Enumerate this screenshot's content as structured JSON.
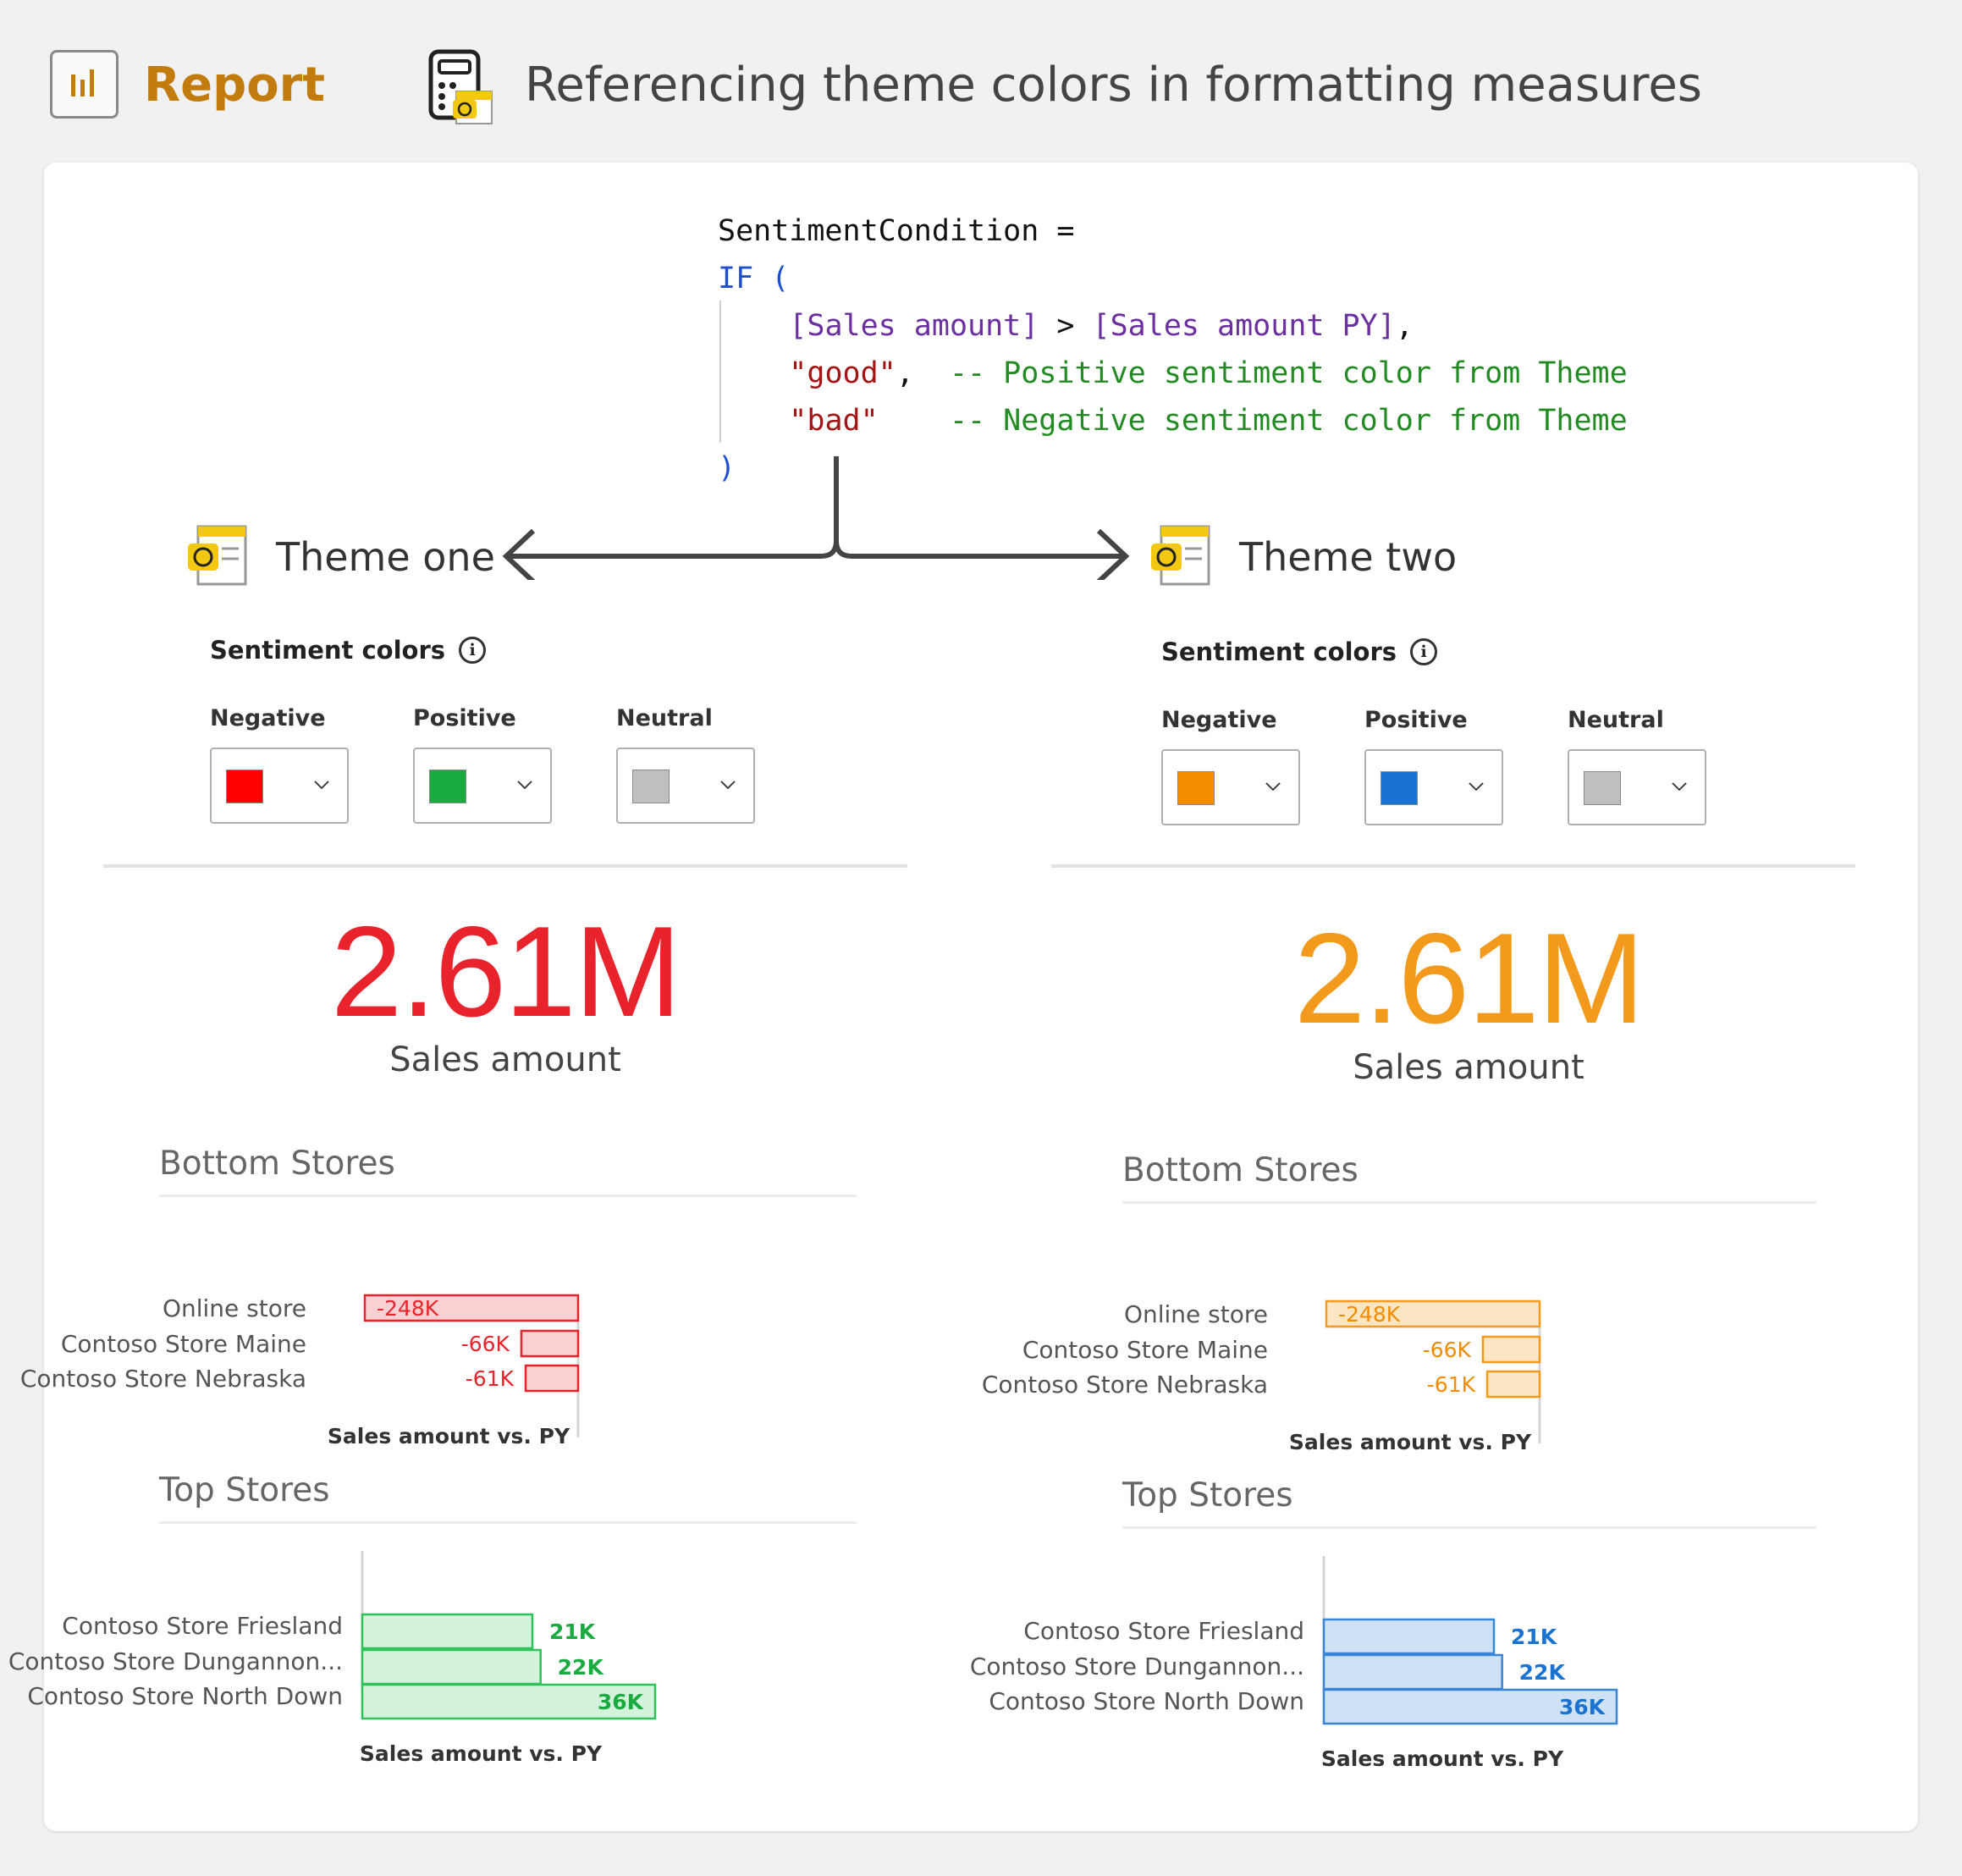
{
  "header": {
    "report_label": "Report",
    "subtitle": "Referencing theme colors in formatting measures",
    "report_icon": "bar-chart-icon",
    "calculator_icon": "calculator-palette-icon"
  },
  "code": {
    "line1": "SentimentCondition =",
    "line2": "IF (",
    "line3_col1": "[Sales amount]",
    "line3_op": " > ",
    "line3_col2": "[Sales amount PY]",
    "line3_comma": ",",
    "line4_str": "\"good\"",
    "line4_comma": ",",
    "line4_cmt": "-- Positive sentiment color from Theme",
    "line5_str": "\"bad\"",
    "line5_cmt": "-- Negative sentiment color from Theme",
    "line6": ")"
  },
  "themes": [
    {
      "title": "Theme one",
      "sentiment_label": "Sentiment colors",
      "swatches": [
        {
          "label": "Negative",
          "color": "#ff0000"
        },
        {
          "label": "Positive",
          "color": "#1aab40"
        },
        {
          "label": "Neutral",
          "color": "#bfbfbf"
        }
      ],
      "kpi_value": "2.61M",
      "kpi_label": "Sales amount",
      "kpi_color": "#e8232b",
      "negative_fill": "#fbd0d3",
      "negative_stroke": "#e8232b",
      "negative_text": "#e8232b",
      "positive_fill": "#d3f3dc",
      "positive_stroke": "#2fc25b",
      "positive_text": "#1aab40"
    },
    {
      "title": "Theme two",
      "sentiment_label": "Sentiment colors",
      "swatches": [
        {
          "label": "Negative",
          "color": "#f28c00"
        },
        {
          "label": "Positive",
          "color": "#1a73d1"
        },
        {
          "label": "Neutral",
          "color": "#bfbfbf"
        }
      ],
      "kpi_value": "2.61M",
      "kpi_label": "Sales amount",
      "kpi_color": "#f39a1d",
      "negative_fill": "#fde6c4",
      "negative_stroke": "#f39a1d",
      "negative_text": "#f28c00",
      "positive_fill": "#cfe1f5",
      "positive_stroke": "#3a86d6",
      "positive_text": "#1a73d1"
    }
  ],
  "chart_data": [
    {
      "type": "bar",
      "orientation": "horizontal",
      "title": "Bottom Stores",
      "categories": [
        "Online store",
        "Contoso Store Maine",
        "Contoso Store Nebraska"
      ],
      "values": [
        -248,
        -66,
        -61
      ],
      "labels": [
        "-248K",
        "-66K",
        "-61K"
      ],
      "xlabel": "Sales amount vs. PY",
      "unit": "K"
    },
    {
      "type": "bar",
      "orientation": "horizontal",
      "title": "Top Stores",
      "categories": [
        "Contoso Store Friesland",
        "Contoso Store Dungannon...",
        "Contoso Store North Down"
      ],
      "values": [
        21,
        22,
        36
      ],
      "labels": [
        "21K",
        "22K",
        "36K"
      ],
      "xlabel": "Sales amount vs. PY",
      "unit": "K"
    }
  ]
}
